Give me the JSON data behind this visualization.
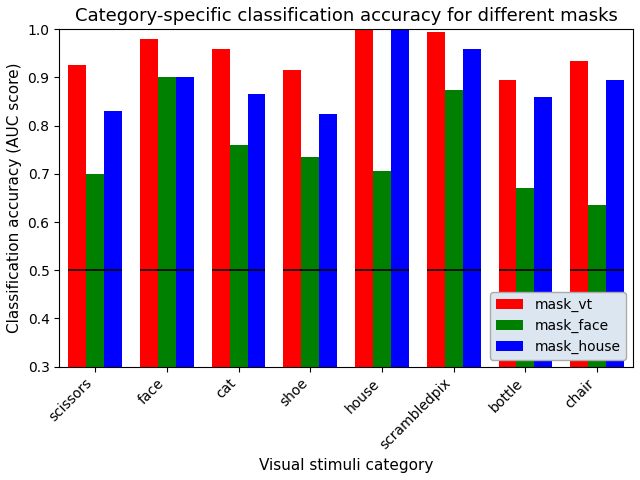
{
  "title": "Category-specific classification accuracy for different masks",
  "xlabel": "Visual stimuli category",
  "ylabel": "Classification accuracy (AUC score)",
  "categories": [
    "scissors",
    "face",
    "cat",
    "shoe",
    "house",
    "scrambledpix",
    "bottle",
    "chair"
  ],
  "series": {
    "mask_vt": [
      0.925,
      0.98,
      0.96,
      0.915,
      1.0,
      0.995,
      0.895,
      0.935
    ],
    "mask_face": [
      0.7,
      0.9,
      0.76,
      0.735,
      0.705,
      0.875,
      0.67,
      0.635
    ],
    "mask_house": [
      0.83,
      0.9,
      0.865,
      0.825,
      1.0,
      0.96,
      0.86,
      0.895
    ]
  },
  "colors": {
    "mask_vt": "#ff0000",
    "mask_face": "#008000",
    "mask_house": "#0000ff"
  },
  "chance_line": 0.5,
  "ylim": [
    0.3,
    1.0
  ],
  "yticks": [
    0.3,
    0.4,
    0.5,
    0.6,
    0.7,
    0.8,
    0.9,
    1.0
  ],
  "bar_width": 0.25,
  "legend_loc": "lower right",
  "background_color": "#ffffff",
  "legend_facecolor": "#dce6f1",
  "grid": false,
  "title_fontsize": 13,
  "label_fontsize": 11,
  "tick_fontsize": 10,
  "legend_fontsize": 10
}
